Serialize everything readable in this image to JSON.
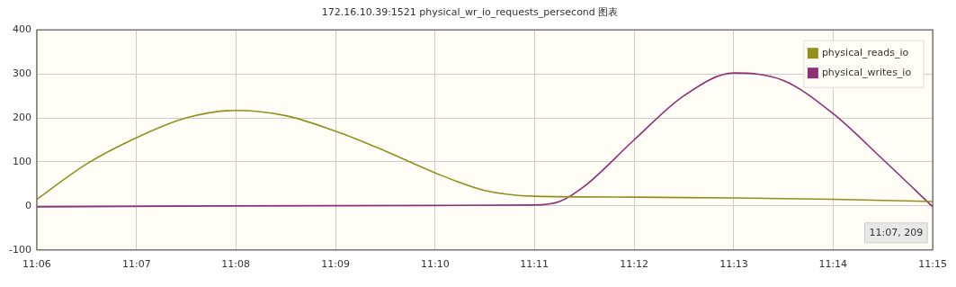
{
  "chart_data": {
    "type": "line",
    "title": "172.16.10.39:1521 physical_wr_io_requests_persecond 图表",
    "series": [
      {
        "name": "physical_reads_io",
        "color": "#948f1c",
        "x": [
          11.1,
          11.1083,
          11.1167,
          11.125,
          11.1333,
          11.1417,
          11.15,
          11.1583,
          11.1667,
          11.175,
          11.1833,
          11.2,
          11.2167,
          11.2333,
          11.25
        ],
        "values": [
          15,
          95,
          155,
          200,
          217,
          205,
          170,
          125,
          75,
          35,
          22,
          20,
          18,
          15,
          10
        ]
      },
      {
        "name": "physical_writes_io",
        "color": "#8e3174",
        "x": [
          11.1,
          11.1333,
          11.1667,
          11.1833,
          11.1875,
          11.1917,
          11.2,
          11.2083,
          11.2167,
          11.225,
          11.2333,
          11.2417,
          11.25
        ],
        "values": [
          -2,
          0,
          1,
          2,
          10,
          45,
          150,
          250,
          302,
          285,
          210,
          105,
          -2
        ]
      }
    ],
    "xlim": [
      11.1,
      11.25
    ],
    "xticks": [
      {
        "value": 11.1,
        "label": "11:06"
      },
      {
        "value": 11.1167,
        "label": "11:07"
      },
      {
        "value": 11.1333,
        "label": "11:08"
      },
      {
        "value": 11.15,
        "label": "11:09"
      },
      {
        "value": 11.1667,
        "label": "11:10"
      },
      {
        "value": 11.1833,
        "label": "11:11"
      },
      {
        "value": 11.2,
        "label": "11:12"
      },
      {
        "value": 11.2167,
        "label": "11:13"
      },
      {
        "value": 11.2333,
        "label": "11:14"
      },
      {
        "value": 11.25,
        "label": "11:15"
      }
    ],
    "ylim": [
      -100,
      400
    ],
    "yticks": [
      -100,
      0,
      100,
      200,
      300,
      400
    ],
    "grid": true,
    "legend": "top right",
    "marker": "none",
    "line_style": "solid",
    "annotations": [
      "11:07, 209"
    ]
  }
}
